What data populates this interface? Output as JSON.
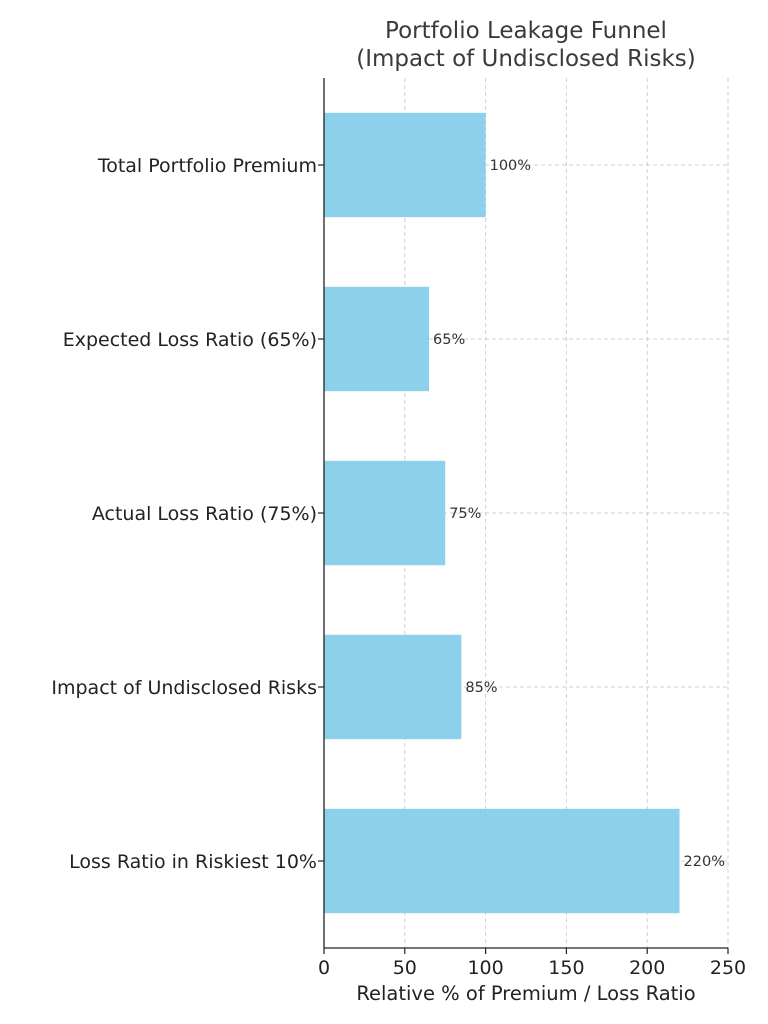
{
  "chart_data": {
    "type": "bar",
    "orientation": "horizontal",
    "title": "Portfolio Leakage Funnel\n(Impact of Undisclosed Risks)",
    "title_lines": [
      "Portfolio Leakage Funnel",
      "(Impact of Undisclosed Risks)"
    ],
    "xlabel": "Relative % of Premium / Loss Ratio",
    "ylabel": "",
    "categories": [
      "Total Portfolio Premium",
      "Expected Loss Ratio (65%)",
      "Actual Loss Ratio (75%)",
      "Impact of Undisclosed Risks",
      "Loss Ratio in Riskiest 10%"
    ],
    "values": [
      100,
      65,
      75,
      85,
      220
    ],
    "data_labels": [
      "100%",
      "65%",
      "75%",
      "85%",
      "220%"
    ],
    "xlim": [
      0,
      250
    ],
    "xticks": [
      0,
      50,
      100,
      150,
      200,
      250
    ],
    "xtick_labels": [
      "0",
      "50",
      "100",
      "150",
      "200",
      "250"
    ],
    "grid": true,
    "bar_color": "#87CEEB"
  }
}
